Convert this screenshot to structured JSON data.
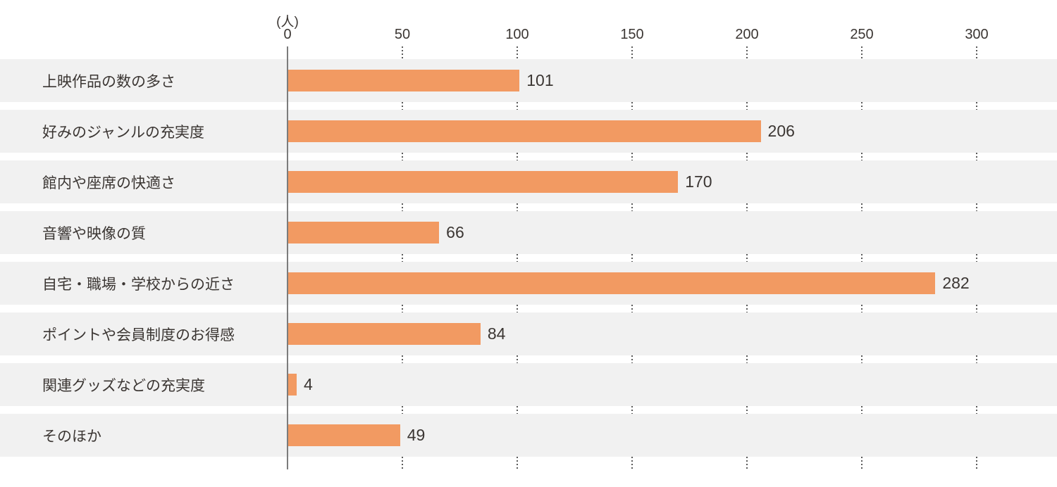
{
  "chart": {
    "unit_label": "(人)",
    "bar_color": "#F29A62",
    "band_color": "#F1F1F1",
    "text_color": "#3B3633",
    "axis_line_color": "#7C7C7C",
    "grid_dot_color": "#5A5A5A"
  },
  "chart_data": {
    "type": "bar",
    "orientation": "horizontal",
    "title": "",
    "xlabel": "(人)",
    "ylabel": "",
    "xlim": [
      0,
      300
    ],
    "x_ticks": [
      0,
      50,
      100,
      150,
      200,
      250,
      300
    ],
    "grid": "dotted-vertical-at-ticks",
    "legend": "none",
    "categories": [
      "上映作品の数の多さ",
      "好みのジャンルの充実度",
      "館内や座席の快適さ",
      "音響や映像の質",
      "自宅・職場・学校からの近さ",
      "ポイントや会員制度のお得感",
      "関連グッズなどの充実度",
      "そのほか"
    ],
    "values": [
      101,
      206,
      170,
      66,
      282,
      84,
      4,
      49
    ]
  }
}
